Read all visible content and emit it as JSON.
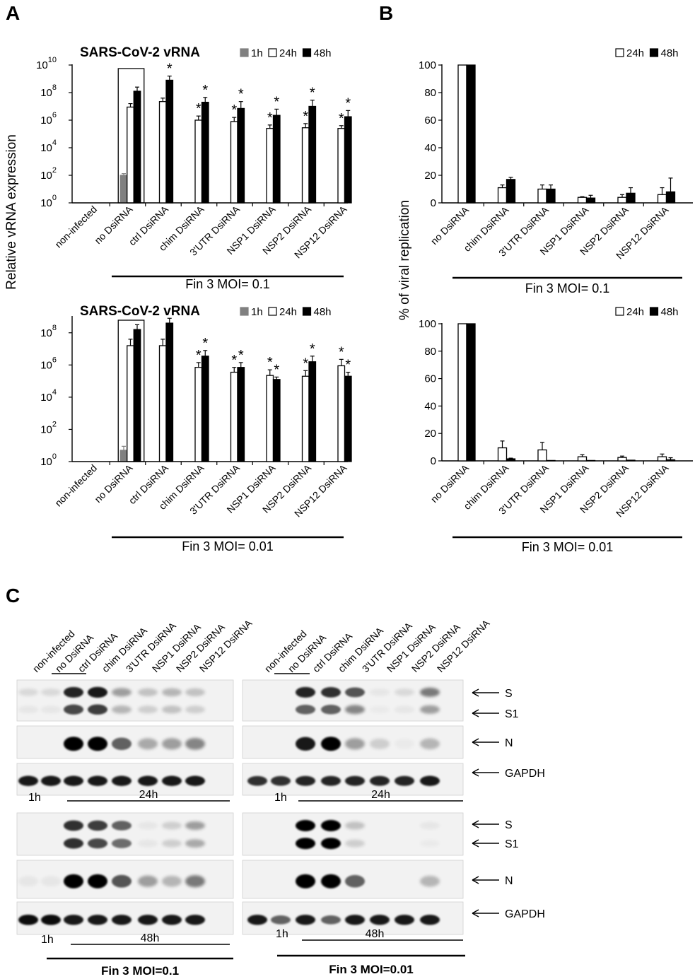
{
  "panels": {
    "a": "A",
    "b": "B",
    "c": "C"
  },
  "shared_ylabel_a": "Relative vRNA expression",
  "shared_ylabel_b": "% of viral replication",
  "chart_data": [
    {
      "id": "A1",
      "type": "bar",
      "scale": "log10",
      "title": "SARS-CoV-2 vRNA",
      "categories": [
        "non-infected",
        "no DsiRNA",
        "ctrl DsiRNA",
        "chim DsiRNA",
        "3'UTR DsiRNA",
        "NSP1 DsiRNA",
        "NSP2 DsiRNA",
        "NSP12 DsiRNA"
      ],
      "yticks": [
        0,
        2,
        4,
        6,
        8,
        10
      ],
      "ytick_labels": [
        "10",
        "10",
        "10",
        "10",
        "10",
        "10"
      ],
      "ytick_exps": [
        "0",
        "2",
        "4",
        "6",
        "8",
        "10"
      ],
      "ylim": [
        0,
        10
      ],
      "legend": [
        "1h",
        "24h",
        "48h"
      ],
      "legend_position": "top-right",
      "condition": "Fin 3 MOI= 0.1",
      "boxed_category": "no DsiRNA",
      "series": [
        {
          "name": "1h",
          "color": "#808080",
          "values": [
            null,
            2.0,
            null,
            null,
            null,
            null,
            null,
            null
          ],
          "err": [
            0,
            0.12,
            0,
            0,
            0,
            0,
            0,
            0
          ]
        },
        {
          "name": "24h",
          "color": "#ffffff",
          "values": [
            null,
            6.95,
            7.35,
            6.0,
            5.9,
            5.4,
            5.45,
            5.4
          ],
          "err": [
            0,
            0.25,
            0.25,
            0.3,
            0.3,
            0.25,
            0.3,
            0.2
          ]
        },
        {
          "name": "48h",
          "color": "#000000",
          "values": [
            null,
            8.1,
            8.9,
            7.3,
            6.85,
            6.35,
            7.0,
            6.25
          ],
          "err": [
            0,
            0.3,
            0.3,
            0.35,
            0.5,
            0.45,
            0.45,
            0.45
          ]
        }
      ],
      "stars": [
        [],
        [],
        [
          "48h"
        ],
        [
          "24h",
          "48h"
        ],
        [
          "24h",
          "48h"
        ],
        [
          "24h",
          "48h"
        ],
        [
          "24h",
          "48h"
        ],
        [
          "24h",
          "48h"
        ]
      ]
    },
    {
      "id": "A2",
      "type": "bar",
      "scale": "log10",
      "title": "SARS-CoV-2 vRNA",
      "categories": [
        "non-infected",
        "no DsiRNA",
        "ctrl DsiRNA",
        "chim DsiRNA",
        "3'UTR DsiRNA",
        "NSP1 DsiRNA",
        "NSP2 DsiRNA",
        "NSP12 DsiRNA"
      ],
      "yticks": [
        0,
        2,
        4,
        6,
        8
      ],
      "ytick_labels": [
        "10",
        "10",
        "10",
        "10",
        "10"
      ],
      "ytick_exps": [
        "0",
        "2",
        "4",
        "6",
        "8"
      ],
      "ylim": [
        0,
        9
      ],
      "legend": [
        "1h",
        "24h",
        "48h"
      ],
      "legend_position": "top-right",
      "condition": "Fin 3 MOI= 0.01",
      "boxed_category": "no DsiRNA",
      "series": [
        {
          "name": "1h",
          "color": "#808080",
          "values": [
            null,
            0.7,
            null,
            null,
            null,
            null,
            null,
            null
          ],
          "err": [
            0,
            0.25,
            0,
            0,
            0,
            0,
            0,
            0
          ]
        },
        {
          "name": "24h",
          "color": "#ffffff",
          "values": [
            null,
            7.2,
            7.2,
            5.85,
            5.55,
            5.35,
            5.3,
            5.95
          ],
          "err": [
            0,
            0.4,
            0.4,
            0.3,
            0.3,
            0.35,
            0.35,
            0.4
          ]
        },
        {
          "name": "48h",
          "color": "#000000",
          "values": [
            null,
            8.2,
            8.6,
            6.55,
            5.85,
            5.1,
            6.2,
            5.3
          ],
          "err": [
            0,
            0.3,
            0.3,
            0.35,
            0.3,
            0.15,
            0.35,
            0.25
          ]
        }
      ],
      "stars": [
        [],
        [],
        [],
        [
          "24h",
          "48h"
        ],
        [
          "24h",
          "48h"
        ],
        [
          "24h",
          "48h"
        ],
        [
          "24h",
          "48h"
        ],
        [
          "24h",
          "48h"
        ]
      ]
    },
    {
      "id": "B1",
      "type": "bar",
      "categories": [
        "no DsiRNA",
        "chim DsiRNA",
        "3'UTR DsiRNA",
        "NSP1 DsiRNA",
        "NSP2 DsiRNA",
        "NSP12 DsiRNA"
      ],
      "yticks": [
        0,
        20,
        40,
        60,
        80,
        100
      ],
      "ylim": [
        0,
        100
      ],
      "legend": [
        "24h",
        "48h"
      ],
      "legend_position": "top-right",
      "condition": "Fin 3 MOI= 0.1",
      "series": [
        {
          "name": "24h",
          "color": "#ffffff",
          "values": [
            100,
            11,
            10,
            4,
            4,
            6
          ],
          "err": [
            0,
            2,
            3,
            0.5,
            2,
            5
          ]
        },
        {
          "name": "48h",
          "color": "#000000",
          "values": [
            100,
            17,
            10,
            3.5,
            7,
            8
          ],
          "err": [
            0,
            1.5,
            3,
            2,
            4,
            10
          ]
        }
      ]
    },
    {
      "id": "B2",
      "type": "bar",
      "categories": [
        "no DsiRNA",
        "chim DsiRNA",
        "3'UTR DsiRNA",
        "NSP1 DsiRNA",
        "NSP2 DsiRNA",
        "NSP12 DsiRNA"
      ],
      "yticks": [
        0,
        20,
        40,
        60,
        80,
        100
      ],
      "ylim": [
        0,
        100
      ],
      "legend": [
        "24h",
        "48h"
      ],
      "legend_position": "top-right",
      "condition": "Fin 3 MOI= 0.01",
      "series": [
        {
          "name": "24h",
          "color": "#ffffff",
          "values": [
            100,
            9.5,
            8,
            3,
            2.5,
            3
          ],
          "err": [
            0,
            5,
            5.5,
            1.5,
            1,
            2
          ]
        },
        {
          "name": "48h",
          "color": "#000000",
          "values": [
            100,
            1.5,
            0.3,
            0.3,
            0.5,
            0.8
          ],
          "err": [
            0,
            0.5,
            0,
            0,
            0,
            1.5
          ]
        }
      ]
    }
  ],
  "blots": {
    "lanes": [
      "non-infected",
      "no DsiRNA",
      "ctrl DsiRNA",
      "chim DsiRNA",
      "3'UTR DsiRNA",
      "NSP1 DsiRNA",
      "NSP2 DsiRNA",
      "NSP12 DsiRNA"
    ],
    "band_labels": {
      "s": "S",
      "s1": "S1",
      "n": "N",
      "gapdh": "GAPDH"
    },
    "time_1h": "1h",
    "time_24h": "24h",
    "time_48h": "48h",
    "cond_left": "Fin 3 MOI=0.1",
    "cond_right": "Fin 3 MOI=0.01"
  }
}
